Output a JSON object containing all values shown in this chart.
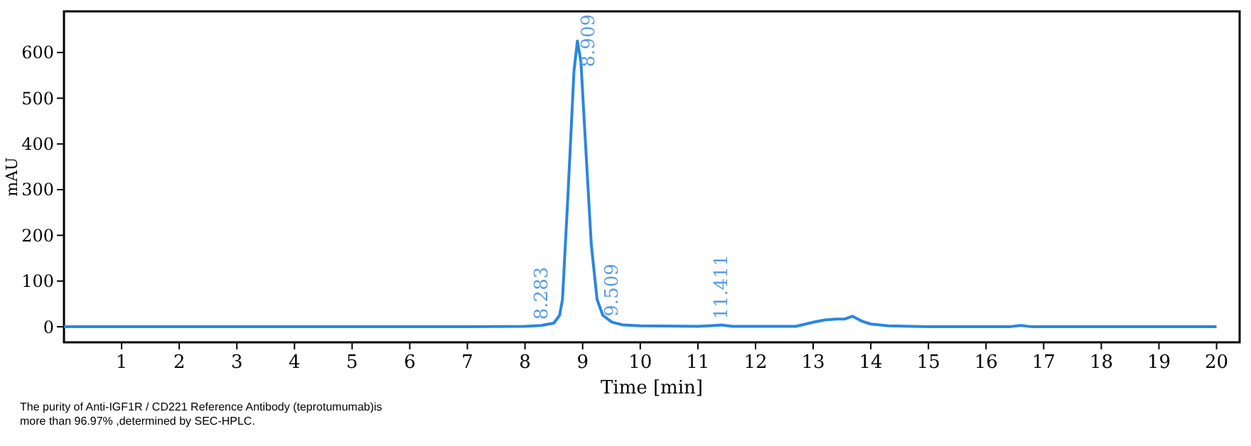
{
  "chart_data": {
    "type": "line",
    "xlabel": "Time [min]",
    "ylabel": "mAU",
    "xlim": [
      0,
      20.4
    ],
    "ylim": [
      -34,
      690
    ],
    "xticks": [
      1,
      2,
      3,
      4,
      5,
      6,
      7,
      8,
      9,
      10,
      11,
      12,
      13,
      14,
      15,
      16,
      17,
      18,
      19,
      20
    ],
    "yticks": [
      0,
      100,
      200,
      300,
      400,
      500,
      600
    ],
    "grid": false,
    "marker": "none",
    "line_style": "solid",
    "series": [
      {
        "color": "#2b86e0",
        "x": [
          0,
          2,
          4,
          6,
          7,
          8,
          8.283,
          8.5,
          8.6,
          8.65,
          8.75,
          8.85,
          8.909,
          8.97,
          9.05,
          9.15,
          9.25,
          9.35,
          9.509,
          9.7,
          10,
          11,
          11.3,
          11.411,
          11.6,
          12.7,
          13.0,
          13.2,
          13.4,
          13.55,
          13.68,
          13.85,
          14.0,
          14.3,
          15,
          16.4,
          16.6,
          16.8,
          18,
          20
        ],
        "values": [
          0,
          0,
          0,
          0,
          0,
          1,
          3,
          8,
          25,
          60,
          300,
          560,
          625,
          580,
          400,
          180,
          60,
          25,
          10,
          4,
          2,
          1,
          3,
          4,
          1,
          1,
          10,
          15,
          17,
          17,
          23,
          12,
          6,
          2,
          0,
          0,
          3,
          0,
          0,
          0
        ]
      }
    ],
    "annotations": [
      {
        "text": "8.283",
        "x": 8.283,
        "y": 3
      },
      {
        "text": "8.909",
        "x": 8.909,
        "y": 625
      },
      {
        "text": "9.509",
        "x": 9.509,
        "y": 10
      },
      {
        "text": "11.411",
        "x": 11.411,
        "y": 4
      },
      "The purity of Anti-IGF1R / CD221 Reference Antibody (teprotumumab)is\nmore than 96.97% ,determined by SEC-HPLC."
    ]
  }
}
